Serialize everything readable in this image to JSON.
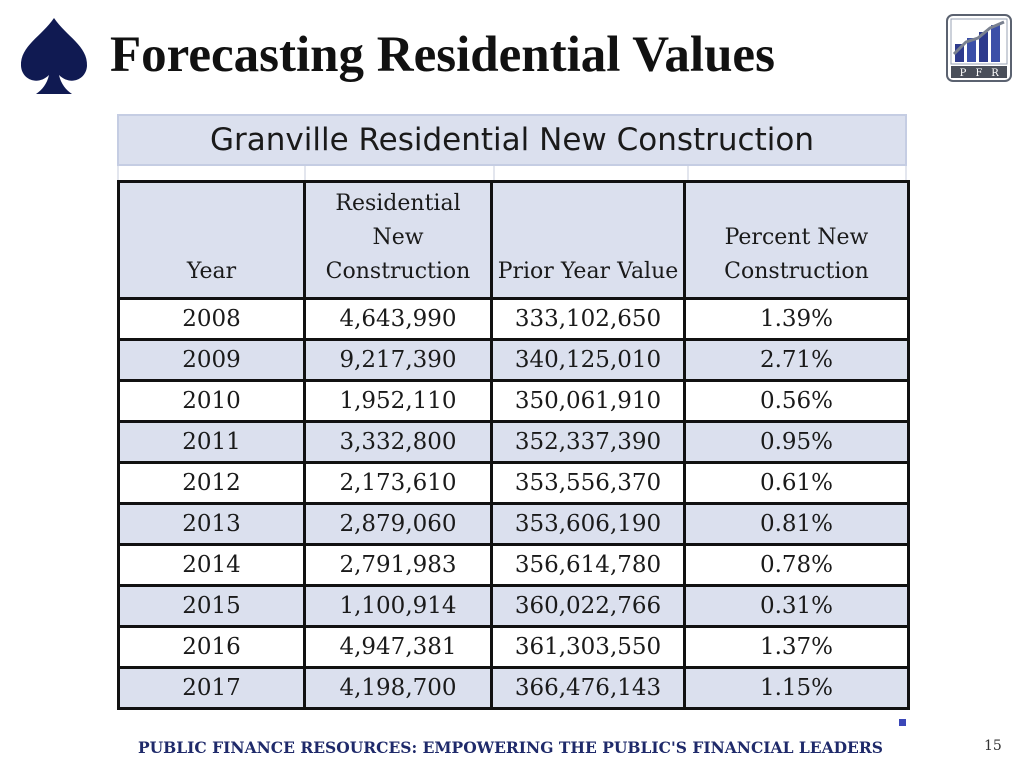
{
  "title": "Forecasting Residential Values",
  "logo": {
    "icon": "pfr-logo-icon",
    "letters": [
      "P",
      "F",
      "R"
    ]
  },
  "table": {
    "caption": "Granville Residential New Construction",
    "headers": [
      "Year",
      "Residential New Construction",
      "Prior Year Value",
      "Percent New Construction"
    ],
    "rows": [
      [
        "2008",
        "4,643,990",
        "333,102,650",
        "1.39%"
      ],
      [
        "2009",
        "9,217,390",
        "340,125,010",
        "2.71%"
      ],
      [
        "2010",
        "1,952,110",
        "350,061,910",
        "0.56%"
      ],
      [
        "2011",
        "3,332,800",
        "352,337,390",
        "0.95%"
      ],
      [
        "2012",
        "2,173,610",
        "353,556,370",
        "0.61%"
      ],
      [
        "2013",
        "2,879,060",
        "353,606,190",
        "0.81%"
      ],
      [
        "2014",
        "2,791,983",
        "356,614,780",
        "0.78%"
      ],
      [
        "2015",
        "1,100,914",
        "360,022,766",
        "0.31%"
      ],
      [
        "2016",
        "4,947,381",
        "361,303,550",
        "1.37%"
      ],
      [
        "2017",
        "4,198,700",
        "366,476,143",
        "1.15%"
      ]
    ]
  },
  "footer": "PUBLIC FINANCE RESOURCES: EMPOWERING THE PUBLIC'S FINANCIAL LEADERS",
  "page_number": "15",
  "colors": {
    "navy": "#1f2a6a",
    "header_fill": "#dbe0ee",
    "accent": "#3b47b8"
  }
}
